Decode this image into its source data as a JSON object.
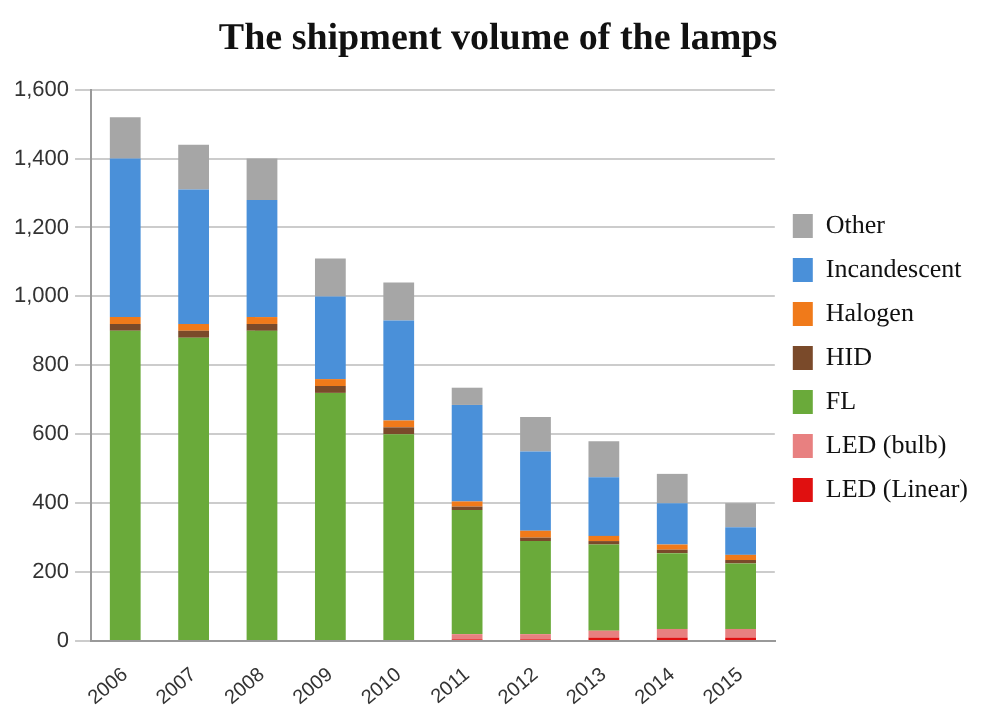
{
  "chart_data": {
    "type": "bar",
    "title": "The shipment volume of the lamps",
    "stacked": true,
    "legend": "right",
    "grid": "y",
    "categories": [
      "2006",
      "2007",
      "2008",
      "2009",
      "2010",
      "2011",
      "2012",
      "2013",
      "2014",
      "2015"
    ],
    "ylim": [
      0,
      1600
    ],
    "yticks": [
      0,
      {
        "value": 200,
        "label": "200"
      },
      {
        "value": 400,
        "label": "400"
      },
      {
        "value": 600,
        "label": "600"
      },
      {
        "value": 800,
        "label": "800"
      },
      {
        "value": 1000,
        "label": "1,000"
      },
      {
        "value": 1200,
        "label": "1,200"
      },
      {
        "value": 1400,
        "label": "1,400"
      },
      {
        "value": 1600,
        "label": "1,600"
      }
    ],
    "series": [
      {
        "name": "LED (Linear)",
        "color": "#e01010",
        "values": [
          0,
          0,
          0,
          0,
          0,
          5,
          5,
          10,
          10,
          10
        ]
      },
      {
        "name": "LED (bulb)",
        "color": "#e88080",
        "values": [
          0,
          0,
          0,
          0,
          0,
          15,
          15,
          20,
          25,
          25
        ]
      },
      {
        "name": "FL",
        "color": "#6aaa3a",
        "values": [
          900,
          880,
          900,
          720,
          600,
          360,
          270,
          250,
          220,
          190
        ]
      },
      {
        "name": "HID",
        "color": "#7a4a2a",
        "values": [
          20,
          20,
          20,
          20,
          20,
          10,
          10,
          10,
          10,
          10
        ]
      },
      {
        "name": "Halogen",
        "color": "#f07a1a",
        "values": [
          20,
          20,
          20,
          20,
          20,
          15,
          20,
          15,
          15,
          15
        ]
      },
      {
        "name": "Incandescent",
        "color": "#4a90d9",
        "values": [
          460,
          390,
          340,
          240,
          290,
          280,
          230,
          170,
          120,
          80
        ]
      },
      {
        "name": "Other",
        "color": "#a6a6a6",
        "values": [
          120,
          130,
          120,
          110,
          110,
          50,
          100,
          105,
          85,
          70
        ]
      }
    ]
  }
}
